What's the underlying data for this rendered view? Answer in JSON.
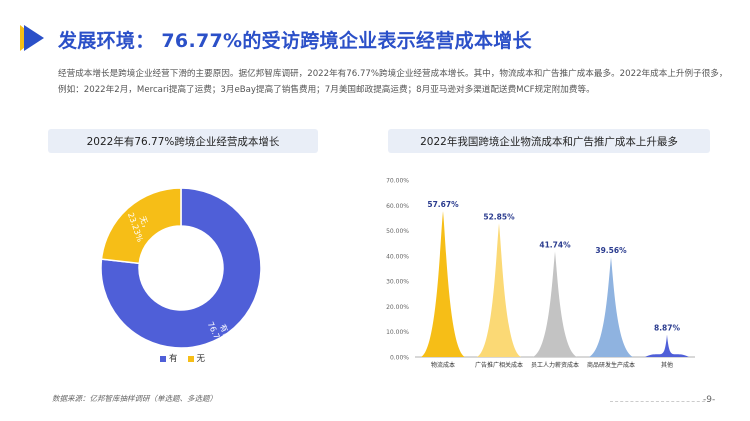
{
  "header": {
    "title": "发展环境： 76.77%的受访跨境企业表示经营成本增长",
    "intro": "经营成本增长是跨境企业经营下滑的主要原因。据亿邦智库调研，2022年有76.77%跨境企业经营成本增长。其中，物流成本和广告推广成本最多。2022年成本上升例子很多，例如：2022年2月，Mercari提高了运费；3月eBay提高了销售费用；7月美国邮政提高运费；8月亚马逊对多渠道配送费MCF规定附加费等。"
  },
  "colors": {
    "brand": "#2b50c8",
    "blue": "#4f5fd8",
    "yellow": "#f6be17"
  },
  "footer": {
    "source": "数据来源：亿邦智库抽样调研（单选题、多选题）",
    "page": "-9-"
  },
  "chart_data": [
    {
      "type": "pie",
      "title": "2022年有76.77%跨境企业经营成本增长",
      "labels": [
        "有",
        "无"
      ],
      "values": [
        76.77,
        23.23
      ],
      "value_labels": [
        "76.77%",
        "23.23%"
      ],
      "colors": [
        "#4f5fd8",
        "#f6be17"
      ],
      "legend": "bottom"
    },
    {
      "type": "bar",
      "title": "2022年我国跨境企业物流成本和广告推广成本上升最多",
      "categories": [
        "物流成本",
        "广告推广相关成本",
        "员工人力薪资成本",
        "商品研发生产成本",
        "其他"
      ],
      "values": [
        57.67,
        52.85,
        41.74,
        39.56,
        8.87
      ],
      "value_labels": [
        "57.67%",
        "52.85%",
        "41.74%",
        "39.56%",
        "8.87%"
      ],
      "colors": [
        "#f6be17",
        "#fbd975",
        "#c3c3c3",
        "#8fb3e0",
        "#4f5fd8"
      ],
      "ylim": [
        0,
        70
      ],
      "yticks": [
        "0.00%",
        "10.00%",
        "20.00%",
        "30.00%",
        "40.00%",
        "50.00%",
        "60.00%",
        "70.00%"
      ]
    }
  ]
}
